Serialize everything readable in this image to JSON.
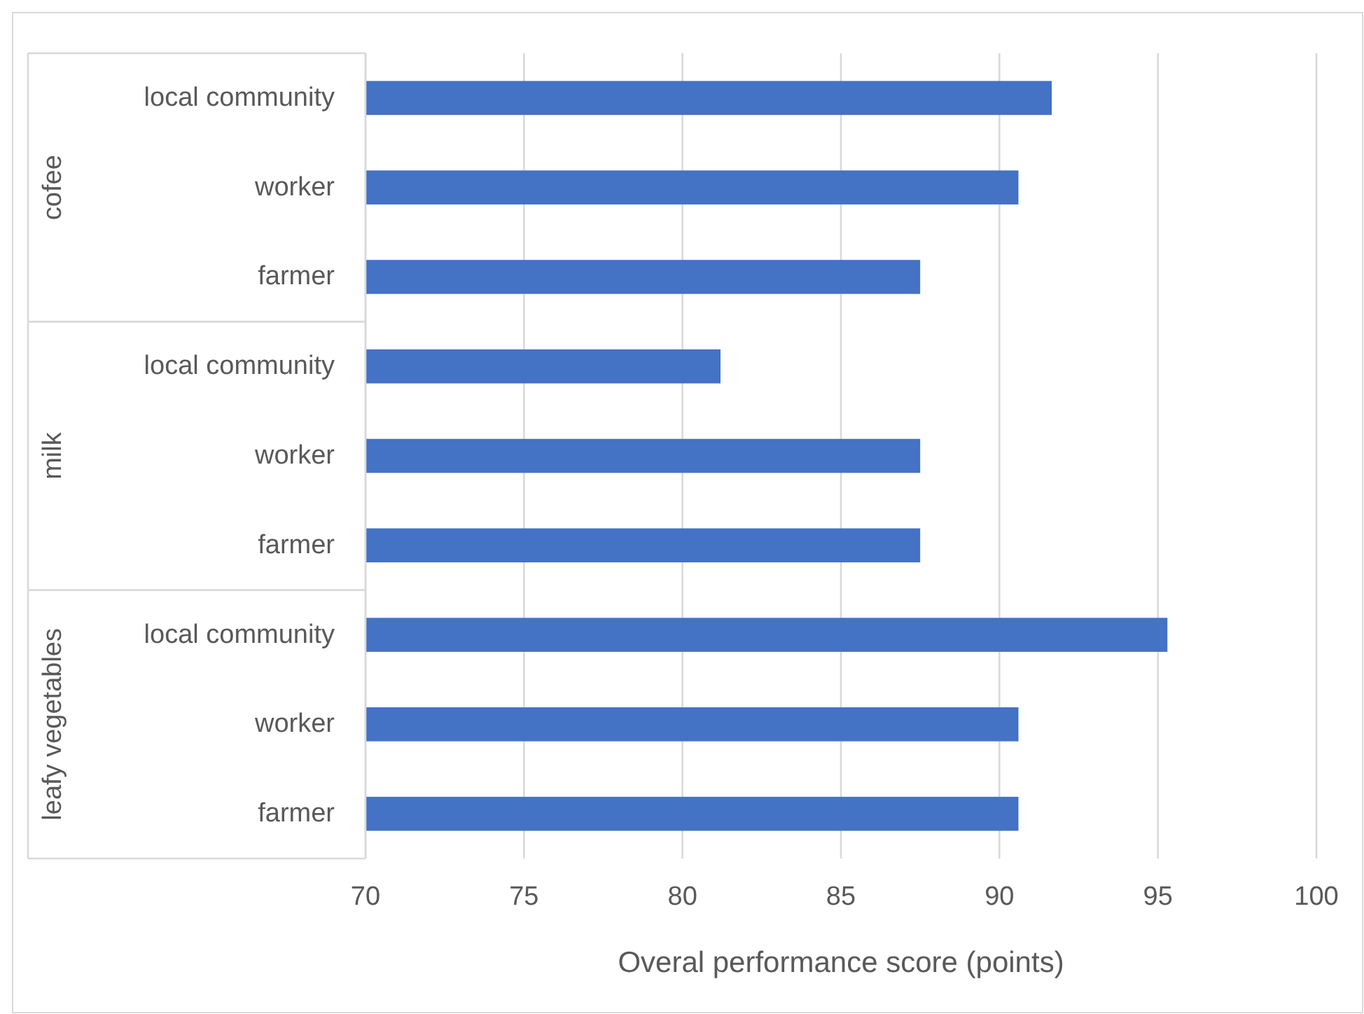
{
  "chart_data": {
    "type": "bar",
    "orientation": "horizontal",
    "xlabel": "Overal performance score (points)",
    "categories": [
      "local community",
      "worker",
      "farmer",
      "local community",
      "worker",
      "farmer",
      "local community",
      "worker",
      "farmer"
    ],
    "values": [
      91.65,
      90.6,
      87.5,
      81.2,
      87.5,
      87.5,
      95.3,
      90.6,
      90.6
    ],
    "color": "#4472c4",
    "annotations": [
      "cofee",
      "milk",
      "leafy vegetables"
    ],
    "xlim": [
      70,
      100
    ],
    "xticks": [
      70,
      75,
      80,
      85,
      90,
      95,
      100
    ],
    "grid": "x"
  }
}
